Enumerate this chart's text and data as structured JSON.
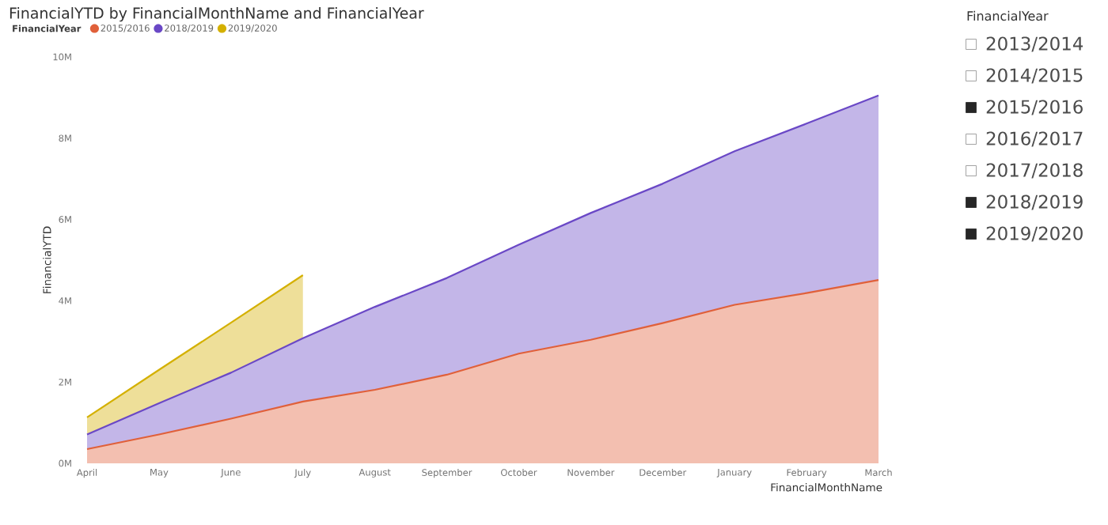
{
  "chart_data": [
    {
      "type": "area",
      "title": "FinancialYTD by FinancialMonthName and FinancialYear",
      "xlabel": "FinancialMonthName",
      "ylabel": "FinancialYTD",
      "legend_title": "FinancialYear",
      "legend": "top left",
      "grid": false,
      "categories": [
        "April",
        "May",
        "June",
        "July",
        "August",
        "September",
        "October",
        "November",
        "December",
        "January",
        "February",
        "March"
      ],
      "ylim": [
        0,
        10000000
      ],
      "yticks": [
        {
          "value": 0,
          "label": "0M"
        },
        {
          "value": 2000000,
          "label": "2M"
        },
        {
          "value": 4000000,
          "label": "4M"
        },
        {
          "value": 6000000,
          "label": "6M"
        },
        {
          "value": 8000000,
          "label": "8M"
        },
        {
          "value": 10000000,
          "label": "10M"
        }
      ],
      "series": [
        {
          "name": "2015/2016",
          "color": "#e0603a",
          "values": [
            350000,
            710000,
            1100000,
            1520000,
            1810000,
            2180000,
            2700000,
            3040000,
            3450000,
            3900000,
            4190000,
            4510000
          ]
        },
        {
          "name": "2018/2019",
          "color": "#6a48c6",
          "values": [
            710000,
            1480000,
            2230000,
            3080000,
            3850000,
            4560000,
            5380000,
            6160000,
            6880000,
            7680000,
            8360000,
            9050000
          ]
        },
        {
          "name": "2019/2020",
          "color": "#d4b000",
          "values": [
            1130000,
            2300000,
            3460000,
            4630000,
            null,
            null,
            null,
            null,
            null,
            null,
            null,
            null
          ]
        }
      ]
    },
    {
      "type": "other",
      "title": "FinancialYear",
      "annotations": [
        "2013/2014",
        "2014/2015",
        "2015/2016",
        "2016/2017",
        "2017/2018",
        "2018/2019",
        "2019/2020"
      ]
    }
  ]
}
